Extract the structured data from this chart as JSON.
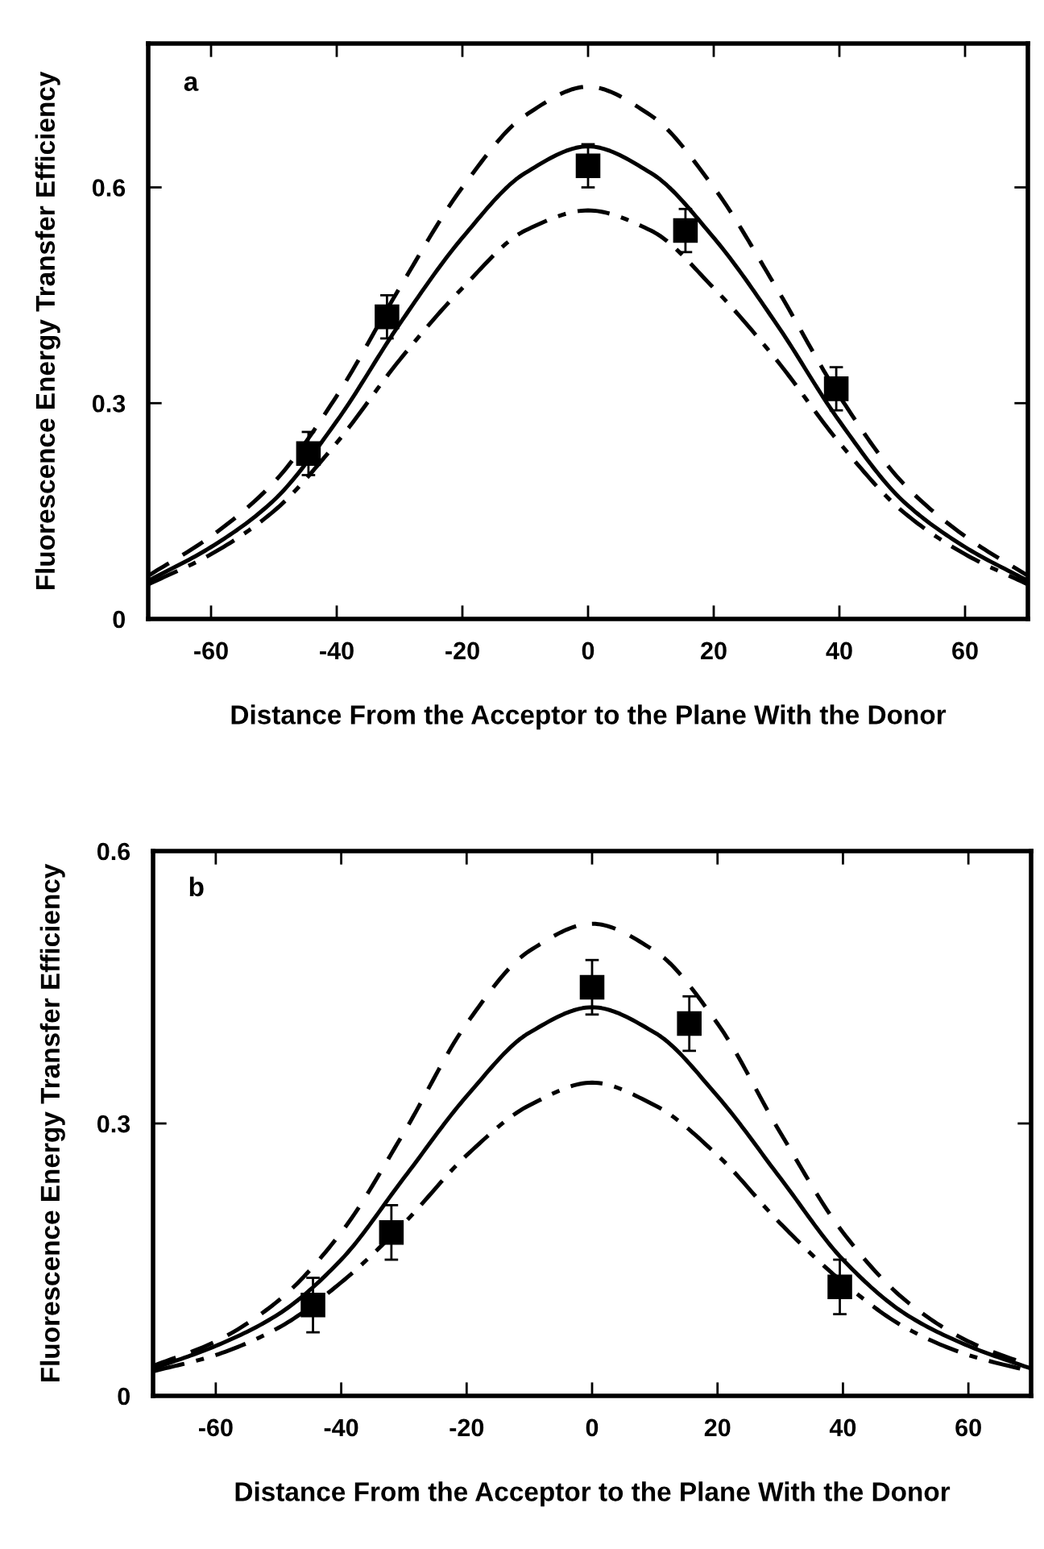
{
  "chart_data": [
    {
      "type": "line",
      "title": "a",
      "xlabel": "Distance From the Acceptor to the Plane With the Donor",
      "ylabel": "Fluorescence Energy Transfer Efficiency",
      "xlim": [
        -70,
        70
      ],
      "xticks": [
        -60,
        -40,
        -20,
        0,
        20,
        40,
        60
      ],
      "ylim": [
        0,
        0.8
      ],
      "yticks": [
        0,
        0.3,
        0.6
      ],
      "grid": false,
      "legend": false,
      "series": [
        {
          "line_style": "dashed",
          "color": "#000000",
          "x": [
            -70,
            -60,
            -50,
            -40,
            -30,
            -20,
            -10,
            0,
            10,
            20,
            30,
            40,
            50,
            60,
            70
          ],
          "values": [
            0.06,
            0.115,
            0.19,
            0.31,
            0.46,
            0.6,
            0.7,
            0.74,
            0.7,
            0.6,
            0.46,
            0.31,
            0.19,
            0.115,
            0.06
          ]
        },
        {
          "line_style": "solid",
          "color": "#000000",
          "x": [
            -70,
            -60,
            -50,
            -40,
            -30,
            -20,
            -10,
            0,
            10,
            20,
            30,
            40,
            50,
            60,
            70
          ],
          "values": [
            0.053,
            0.1,
            0.165,
            0.275,
            0.41,
            0.53,
            0.62,
            0.657,
            0.62,
            0.53,
            0.41,
            0.275,
            0.165,
            0.1,
            0.053
          ]
        },
        {
          "line_style": "dashdot",
          "color": "#000000",
          "x": [
            -70,
            -60,
            -50,
            -40,
            -30,
            -20,
            -10,
            0,
            10,
            20,
            30,
            40,
            50,
            60,
            70
          ],
          "values": [
            0.048,
            0.09,
            0.15,
            0.245,
            0.36,
            0.46,
            0.54,
            0.568,
            0.54,
            0.46,
            0.36,
            0.245,
            0.15,
            0.09,
            0.048
          ]
        },
        {
          "type": "scatter",
          "marker": "square",
          "color": "#000000",
          "x": [
            -44.5,
            -32,
            0,
            15.5,
            39.5
          ],
          "values": [
            0.23,
            0.42,
            0.63,
            0.54,
            0.32
          ],
          "errors": [
            0.03,
            0.03,
            0.03,
            0.03,
            0.03
          ]
        }
      ]
    },
    {
      "type": "line",
      "title": "b",
      "xlabel": "Distance From the Acceptor to the Plane With the Donor",
      "ylabel": "Fluorescence Energy Transfer Efficiency",
      "xlim": [
        -70,
        70
      ],
      "xticks": [
        -60,
        -40,
        -20,
        0,
        20,
        40,
        60
      ],
      "ylim": [
        0,
        0.6
      ],
      "yticks": [
        0,
        0.3,
        0.6
      ],
      "grid": false,
      "legend": false,
      "series": [
        {
          "line_style": "dashed",
          "color": "#000000",
          "x": [
            -70,
            -60,
            -50,
            -40,
            -30,
            -20,
            -10,
            0,
            10,
            20,
            30,
            40,
            50,
            60,
            70
          ],
          "values": [
            0.033,
            0.06,
            0.105,
            0.18,
            0.29,
            0.41,
            0.49,
            0.52,
            0.49,
            0.41,
            0.29,
            0.18,
            0.105,
            0.06,
            0.033
          ]
        },
        {
          "line_style": "solid",
          "color": "#000000",
          "x": [
            -70,
            -60,
            -50,
            -40,
            -30,
            -20,
            -10,
            0,
            10,
            20,
            30,
            40,
            50,
            60,
            70
          ],
          "values": [
            0.03,
            0.055,
            0.09,
            0.15,
            0.24,
            0.33,
            0.4,
            0.428,
            0.4,
            0.33,
            0.24,
            0.15,
            0.09,
            0.055,
            0.03
          ]
        },
        {
          "line_style": "dashdot",
          "color": "#000000",
          "x": [
            -70,
            -60,
            -50,
            -40,
            -30,
            -20,
            -10,
            0,
            10,
            20,
            30,
            40,
            50,
            60,
            70
          ],
          "values": [
            0.027,
            0.045,
            0.075,
            0.125,
            0.19,
            0.265,
            0.32,
            0.345,
            0.32,
            0.265,
            0.19,
            0.125,
            0.075,
            0.045,
            0.027
          ]
        },
        {
          "type": "scatter",
          "marker": "square",
          "color": "#000000",
          "x": [
            -44.5,
            -32,
            0,
            15.5,
            39.5
          ],
          "values": [
            0.1,
            0.18,
            0.45,
            0.41,
            0.12
          ],
          "errors": [
            0.03,
            0.03,
            0.03,
            0.03,
            0.03
          ]
        }
      ]
    }
  ]
}
